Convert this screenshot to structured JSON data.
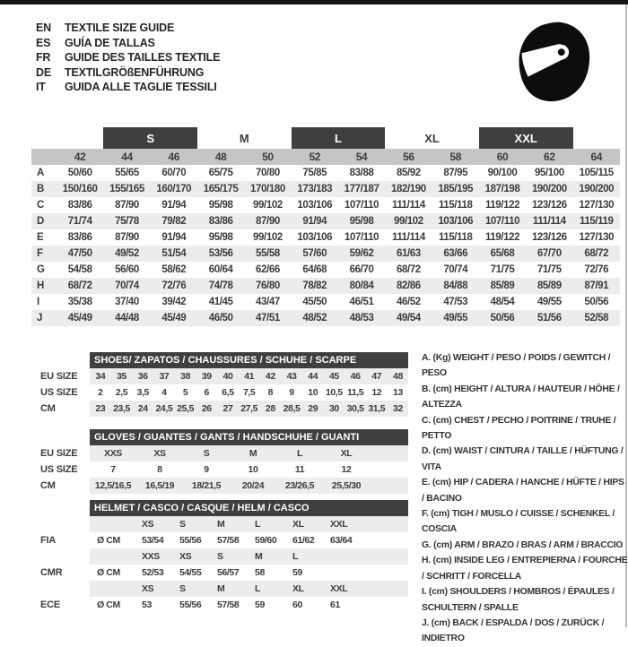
{
  "colors": {
    "top_bar": "#161616",
    "dark_bar": "#3f3f3f",
    "size_header_gray": "#c5c5c5",
    "zebra_gray": "#ececec",
    "text": "#3c3c3c"
  },
  "header": {
    "languages": [
      {
        "code": "EN",
        "text": "TEXTILE SIZE GUIDE"
      },
      {
        "code": "ES",
        "text": "GUÍA DE TALLAS"
      },
      {
        "code": "FR",
        "text": "GUIDE DES TAILLES TEXTILE"
      },
      {
        "code": "DE",
        "text": "TEXTILGRÖßENFÜHRUNG"
      },
      {
        "code": "IT",
        "text": "GUIDA ALLE TAGLIE TESSILI"
      }
    ],
    "helmet_icon": "racing-helmet-icon"
  },
  "size_table": {
    "groups": [
      {
        "label": "S",
        "dark": true
      },
      {
        "label": "M",
        "dark": false
      },
      {
        "label": "L",
        "dark": true
      },
      {
        "label": "XL",
        "dark": false
      },
      {
        "label": "XXL",
        "dark": true
      }
    ],
    "sizes": [
      "42",
      "44",
      "46",
      "48",
      "50",
      "52",
      "54",
      "56",
      "58",
      "60",
      "62",
      "64"
    ],
    "rows": [
      {
        "label": "A",
        "values": [
          "50/60",
          "55/65",
          "60/70",
          "65/75",
          "70/80",
          "75/85",
          "83/88",
          "85/92",
          "87/95",
          "90/100",
          "95/100",
          "105/115"
        ]
      },
      {
        "label": "B",
        "values": [
          "150/160",
          "155/165",
          "160/170",
          "165/175",
          "170/180",
          "173/183",
          "177/187",
          "182/190",
          "185/195",
          "187/198",
          "190/200",
          "190/200"
        ]
      },
      {
        "label": "C",
        "values": [
          "83/86",
          "87/90",
          "91/94",
          "95/98",
          "99/102",
          "103/106",
          "107/110",
          "111/114",
          "115/118",
          "119/122",
          "123/126",
          "127/130"
        ]
      },
      {
        "label": "D",
        "values": [
          "71/74",
          "75/78",
          "79/82",
          "83/86",
          "87/90",
          "91/94",
          "95/98",
          "99/102",
          "103/106",
          "107/110",
          "111/114",
          "115/119"
        ]
      },
      {
        "label": "E",
        "values": [
          "83/86",
          "87/90",
          "91/94",
          "95/98",
          "99/102",
          "103/106",
          "107/110",
          "111/114",
          "115/118",
          "119/122",
          "123/126",
          "127/130"
        ]
      },
      {
        "label": "F",
        "values": [
          "47/50",
          "49/52",
          "51/54",
          "53/56",
          "55/58",
          "57/60",
          "59/62",
          "61/63",
          "63/66",
          "65/68",
          "67/70",
          "68/72"
        ]
      },
      {
        "label": "G",
        "values": [
          "54/58",
          "56/60",
          "58/62",
          "60/64",
          "62/66",
          "64/68",
          "66/70",
          "68/72",
          "70/74",
          "71/75",
          "71/75",
          "72/76"
        ]
      },
      {
        "label": "H",
        "values": [
          "68/72",
          "70/74",
          "72/76",
          "74/78",
          "76/80",
          "78/82",
          "80/84",
          "82/86",
          "84/88",
          "85/89",
          "85/89",
          "87/91"
        ]
      },
      {
        "label": "I",
        "values": [
          "35/38",
          "37/40",
          "39/42",
          "41/45",
          "43/47",
          "45/50",
          "46/51",
          "46/52",
          "47/53",
          "48/54",
          "49/55",
          "50/56"
        ]
      },
      {
        "label": "J",
        "values": [
          "45/49",
          "44/48",
          "45/49",
          "46/50",
          "47/51",
          "48/52",
          "48/53",
          "49/54",
          "49/55",
          "50/56",
          "51/56",
          "52/58"
        ]
      }
    ]
  },
  "shoes": {
    "title": "SHOES/ ZAPATOS / CHAUSSURES / SCHUHE / SCARPE",
    "rows": [
      {
        "label": "EU SIZE",
        "values": [
          "34",
          "35",
          "36",
          "37",
          "38",
          "39",
          "40",
          "41",
          "42",
          "43",
          "44",
          "45",
          "46",
          "47",
          "48"
        ]
      },
      {
        "label": "US SIZE",
        "values": [
          "2",
          "2,5",
          "3,5",
          "4",
          "5",
          "6",
          "6,5",
          "7,5",
          "8",
          "9",
          "10",
          "10,5",
          "11,5",
          "12",
          "13"
        ]
      },
      {
        "label": "CM",
        "values": [
          "23",
          "23,5",
          "24",
          "24,5",
          "25,5",
          "26",
          "27",
          "27,5",
          "28",
          "28,5",
          "29",
          "30",
          "30,5",
          "31,5",
          "32"
        ]
      }
    ]
  },
  "gloves": {
    "title": "GLOVES / GUANTES / GANTS / HANDSCHUHE / GUANTI",
    "rows": [
      {
        "label": "EU SIZE",
        "values": [
          "XXS",
          "XS",
          "S",
          "M",
          "L",
          "XL"
        ]
      },
      {
        "label": "US SIZE",
        "values": [
          "7",
          "8",
          "9",
          "10",
          "11",
          "12"
        ]
      },
      {
        "label": "CM",
        "values": [
          "12,5/16,5",
          "16,5/19",
          "18/21,5",
          "20/24",
          "23/26,5",
          "25,5/30"
        ]
      }
    ]
  },
  "helmet": {
    "title": "HELMET / CASCO / CASQUE / HELM / CASCO",
    "standards": [
      {
        "label": "FIA",
        "unit": "Ø CM",
        "sizes": [
          "XS",
          "S",
          "M",
          "L",
          "XL",
          "XXL"
        ],
        "values": [
          "53/54",
          "55/56",
          "57/58",
          "59/60",
          "61/62",
          "63/64"
        ]
      },
      {
        "label": "CMR",
        "unit": "Ø CM",
        "sizes": [
          "XXS",
          "XS",
          "S",
          "M",
          "L",
          ""
        ],
        "values": [
          "52/53",
          "54/55",
          "56/57",
          "58",
          "59",
          ""
        ]
      },
      {
        "label": "ECE",
        "unit": "Ø CM",
        "sizes": [
          "XS",
          "S",
          "M",
          "L",
          "XL",
          "XXL"
        ],
        "values": [
          "53",
          "55/56",
          "57/58",
          "59",
          "60",
          "61"
        ]
      }
    ]
  },
  "legend": {
    "items": [
      "A. (Kg) WEIGHT / PESO / POIDS / GEWITCH / PESO",
      "B. (cm) HEIGHT / ALTURA / HAUTEUR / HÖHE / ALTEZZA",
      "C. (cm) CHEST / PECHO / POITRINE / TRUHE / PETTO",
      "D. (cm) WAIST / CINTURA / TAILLE / HÜFTUNG / VITA",
      "E. (cm) HIP / CADERA / HANCHE / HÜFTE / HIPS / BACINO",
      "F. (cm) TIGH / MUSLO / CUISSE / SCHENKEL / COSCIA",
      "G. (cm) ARM / BRAZO / BRAS / ARM / BRACCIO",
      "H. (cm) INSIDE LEG / ENTREPIERNA / FOURCHE / SCHRITT / FORCELLA",
      "I. (cm) SHOULDERS / HOMBROS / ÉPAULES / SCHULTERN / SPALLE",
      "J. (cm) BACK / ESPALDA / DOS / ZURÜCK / INDIETRO"
    ]
  }
}
